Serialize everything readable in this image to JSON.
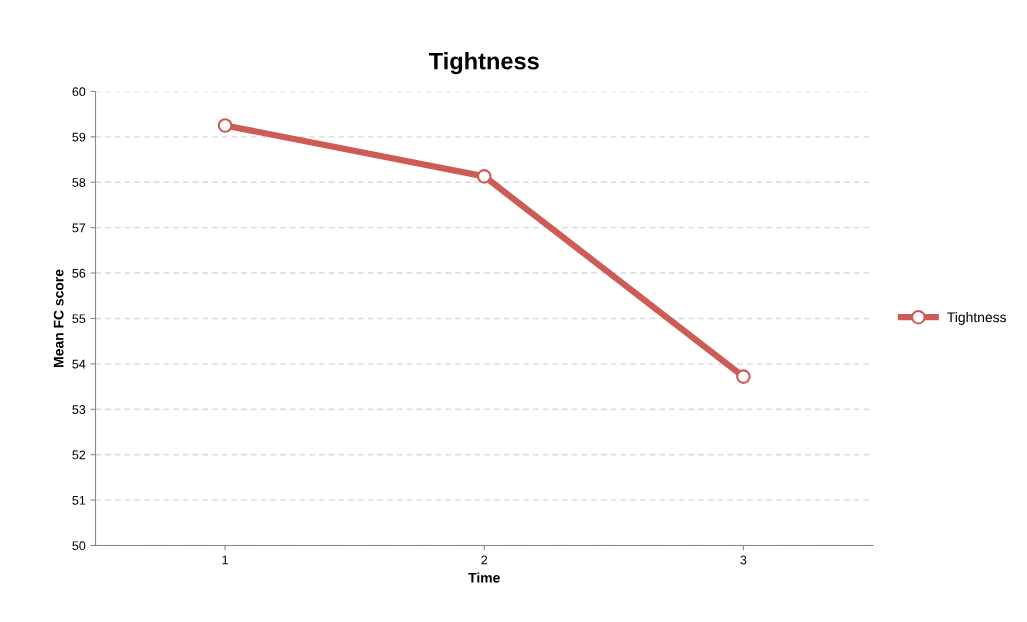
{
  "chart_data": {
    "type": "line",
    "title": "Tightness",
    "xlabel": "Time",
    "ylabel": "Mean FC score",
    "categories": [
      "1",
      "2",
      "3"
    ],
    "series": [
      {
        "name": "Tightness",
        "color": "#cd5c57",
        "values": [
          59.25,
          58.13,
          53.72
        ]
      }
    ],
    "ylim": [
      50,
      60
    ],
    "yticks": [
      50,
      51,
      52,
      53,
      54,
      55,
      56,
      57,
      58,
      59,
      60
    ],
    "grid": "y",
    "legend": "right",
    "marker": "circle",
    "line_style": "solid"
  }
}
